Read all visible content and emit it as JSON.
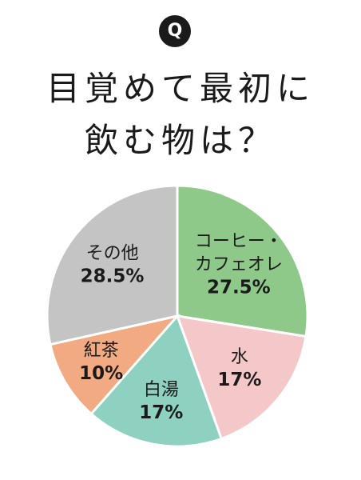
{
  "badge": "Q",
  "title_lines": [
    "目覚めて最初に",
    "飲む物は？"
  ],
  "chart_data": {
    "type": "pie",
    "title": "目覚めて最初に飲む物は？",
    "slices": [
      {
        "label_lines": [
          "コーヒー・",
          "カフェオレ"
        ],
        "value": 27.5,
        "display": "27.5%",
        "color": "#8fc98a"
      },
      {
        "label_lines": [
          "水"
        ],
        "value": 17,
        "display": "17%",
        "color": "#f4c7c9"
      },
      {
        "label_lines": [
          "白湯"
        ],
        "value": 17,
        "display": "17%",
        "color": "#8ed1c0"
      },
      {
        "label_lines": [
          "紅茶"
        ],
        "value": 10,
        "display": "10%",
        "color": "#f2aa83"
      },
      {
        "label_lines": [
          "その他"
        ],
        "value": 28.5,
        "display": "28.5%",
        "color": "#c4c4c4"
      }
    ],
    "start": "top",
    "direction": "clockwise",
    "legend": "none"
  }
}
